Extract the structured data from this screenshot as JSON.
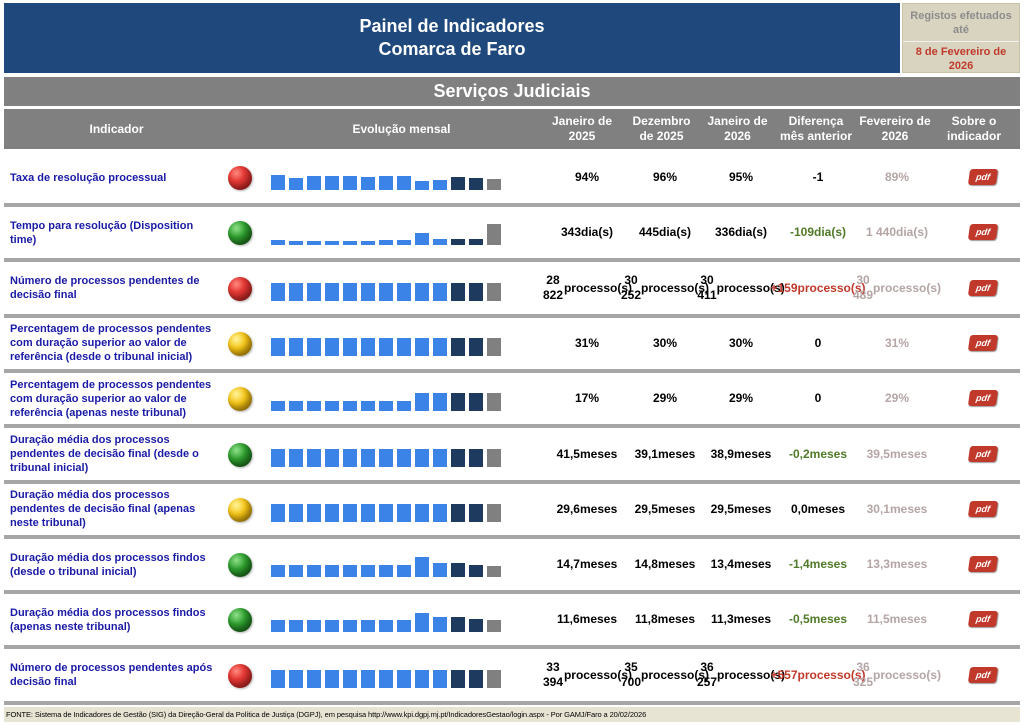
{
  "header": {
    "title_line1": "Painel de Indicadores",
    "title_line2": "Comarca de Faro",
    "registos_label": "Registos efetuados até",
    "registos_date": "8 de Fevereiro de 2026"
  },
  "section_title": "Serviços Judiciais",
  "columns": {
    "indicador": "Indicador",
    "evolucao": "Evolução mensal",
    "jan2025": "Janeiro de 2025",
    "dez2025": "Dezembro de 2025",
    "jan2026": "Janeiro de 2026",
    "diferenca": "Diferença mês anterior",
    "fev2026": "Fevereiro de 2026",
    "sobre": "Sobre o indicador"
  },
  "rows": [
    {
      "name": "Taxa de resolução processual",
      "status": "red",
      "status_icon": "red-light-icon",
      "spark": [
        0.7,
        0.55,
        0.65,
        0.65,
        0.65,
        0.6,
        0.65,
        0.65,
        0.4,
        0.45,
        0.6,
        0.55,
        0.5
      ],
      "jan2025": "94%",
      "dez2025": "96%",
      "jan2026": "95%",
      "diff": "-1",
      "diff_type": "neutral",
      "fev2026": "89%"
    },
    {
      "name": "Tempo para resolução (Disposition time)",
      "status": "green",
      "status_icon": "green-light-icon",
      "spark": [
        0.22,
        0.18,
        0.2,
        0.2,
        0.2,
        0.2,
        0.22,
        0.22,
        0.55,
        0.25,
        0.25,
        0.25,
        0.95
      ],
      "jan2025": "343 dia(s)",
      "dez2025": "445 dia(s)",
      "jan2026": "336 dia(s)",
      "diff": "-109 dia(s)",
      "diff_type": "neg",
      "fev2026": "1 440 dia(s)"
    },
    {
      "name": "Número de processos pendentes de decisão final",
      "status": "red",
      "status_icon": "red-light-icon",
      "spark": [
        0.8,
        0.8,
        0.8,
        0.8,
        0.8,
        0.8,
        0.8,
        0.8,
        0.8,
        0.8,
        0.8,
        0.8,
        0.8
      ],
      "jan2025": "28 822 processo(s)",
      "dez2025": "30 252 processo(s)",
      "jan2026": "30 411 processo(s)",
      "diff": "+159 processo(s)",
      "diff_type": "pos",
      "fev2026": "30 489 processo(s)"
    },
    {
      "name": "Percentagem de processos pendentes com duração superior ao valor de referência (desde o tribunal inicial)",
      "status": "yellow",
      "status_icon": "yellow-light-icon",
      "spark": [
        0.8,
        0.8,
        0.8,
        0.8,
        0.8,
        0.8,
        0.8,
        0.8,
        0.8,
        0.8,
        0.8,
        0.8,
        0.8
      ],
      "jan2025": "31%",
      "dez2025": "30%",
      "jan2026": "30%",
      "diff": "0",
      "diff_type": "neutral",
      "fev2026": "31%"
    },
    {
      "name": "Percentagem de processos pendentes com duração superior ao valor de referência (apenas neste tribunal)",
      "status": "yellow",
      "status_icon": "yellow-light-icon",
      "spark": [
        0.45,
        0.45,
        0.45,
        0.45,
        0.45,
        0.45,
        0.45,
        0.45,
        0.8,
        0.8,
        0.8,
        0.8,
        0.8
      ],
      "jan2025": "17%",
      "dez2025": "29%",
      "jan2026": "29%",
      "diff": "0",
      "diff_type": "neutral",
      "fev2026": "29%"
    },
    {
      "name": "Duração média dos processos pendentes de decisão final (desde o tribunal inicial)",
      "status": "green",
      "status_icon": "green-light-icon",
      "spark": [
        0.8,
        0.8,
        0.8,
        0.8,
        0.8,
        0.8,
        0.8,
        0.8,
        0.8,
        0.8,
        0.8,
        0.8,
        0.8
      ],
      "jan2025": "41,5 meses",
      "dez2025": "39,1 meses",
      "jan2026": "38,9 meses",
      "diff": "-0,2 meses",
      "diff_type": "neg",
      "fev2026": "39,5 meses"
    },
    {
      "name": "Duração média dos processos pendentes de decisão final (apenas neste tribunal)",
      "status": "yellow",
      "status_icon": "yellow-light-icon",
      "spark": [
        0.8,
        0.8,
        0.8,
        0.8,
        0.8,
        0.8,
        0.8,
        0.8,
        0.8,
        0.8,
        0.8,
        0.8,
        0.8
      ],
      "jan2025": "29,6 meses",
      "dez2025": "29,5 meses",
      "jan2026": "29,5 meses",
      "diff": "0,0 meses",
      "diff_type": "neutral",
      "fev2026": "30,1 meses"
    },
    {
      "name": "Duração média dos processos findos (desde o tribunal inicial)",
      "status": "green",
      "status_icon": "green-light-icon",
      "spark": [
        0.55,
        0.55,
        0.55,
        0.55,
        0.55,
        0.55,
        0.55,
        0.55,
        0.9,
        0.65,
        0.65,
        0.55,
        0.5
      ],
      "jan2025": "14,7 meses",
      "dez2025": "14,8 meses",
      "jan2026": "13,4 meses",
      "diff": "-1,4 meses",
      "diff_type": "neg",
      "fev2026": "13,3 meses"
    },
    {
      "name": "Duração média dos processos findos (apenas neste tribunal)",
      "status": "green",
      "status_icon": "green-light-icon",
      "spark": [
        0.55,
        0.55,
        0.55,
        0.55,
        0.55,
        0.55,
        0.55,
        0.55,
        0.85,
        0.7,
        0.7,
        0.6,
        0.55
      ],
      "jan2025": "11,6 meses",
      "dez2025": "11,8 meses",
      "jan2026": "11,3 meses",
      "diff": "-0,5 meses",
      "diff_type": "neg",
      "fev2026": "11,5 meses"
    },
    {
      "name": "Número de processos pendentes após decisão final",
      "status": "red",
      "status_icon": "red-light-icon",
      "spark": [
        0.8,
        0.8,
        0.8,
        0.8,
        0.8,
        0.8,
        0.8,
        0.8,
        0.8,
        0.8,
        0.8,
        0.8,
        0.8
      ],
      "jan2025": "33 394 processo(s)",
      "dez2025": "35 700 processo(s)",
      "jan2026": "36 257 processo(s)",
      "diff": "+557 processo(s)",
      "diff_type": "pos",
      "fev2026": "36 325 processo(s)"
    }
  ],
  "pdf_label": "pdf",
  "footer": "FONTE: Sistema de Indicadores de Gestão (SIG) da Direção-Geral da Política de Justiça (DGPJ), em pesquisa http://www.kpi.dgpj.mj.pt/IndicadoresGestao/login.aspx - Por GAMJ/Faro a 20/02/2026"
}
